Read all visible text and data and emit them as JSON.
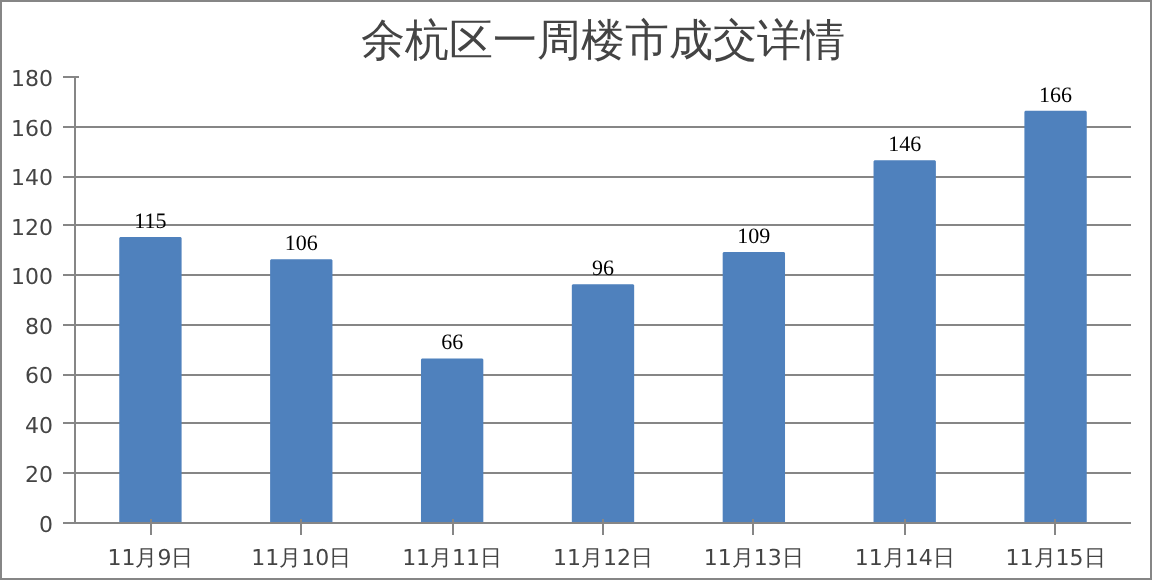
{
  "chart_data": {
    "type": "bar",
    "title": "余杭区一周楼市成交详情",
    "categories": [
      "11月9日",
      "11月10日",
      "11月11日",
      "11月12日",
      "11月13日",
      "11月14日",
      "11月15日"
    ],
    "values": [
      115,
      106,
      66,
      96,
      109,
      146,
      166
    ],
    "color": "#4f81bd",
    "ylim": [
      0,
      180
    ],
    "yticks": [
      0,
      20,
      40,
      60,
      80,
      100,
      120,
      140,
      160,
      180
    ],
    "grid": "y",
    "data_labels": true
  }
}
